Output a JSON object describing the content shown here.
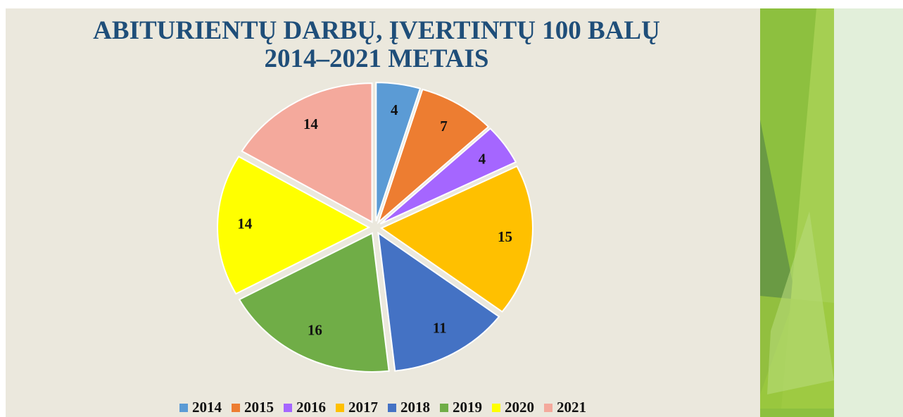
{
  "chart_data": {
    "type": "pie",
    "title": "ABITURIENTŲ DARBŲ, ĮVERTINTŲ 100 BALŲ 2014–2021 METAIS",
    "categories": [
      "2014",
      "2015",
      "2016",
      "2017",
      "2018",
      "2019",
      "2020",
      "2021"
    ],
    "values": [
      4,
      7,
      4,
      15,
      11,
      16,
      14,
      14
    ],
    "colors": [
      "#5b9bd5",
      "#ed7d31",
      "#a566ff",
      "#ffc000",
      "#4472c4",
      "#70ad47",
      "#ffff00",
      "#f4a99c"
    ],
    "legend": "bottom"
  }
}
